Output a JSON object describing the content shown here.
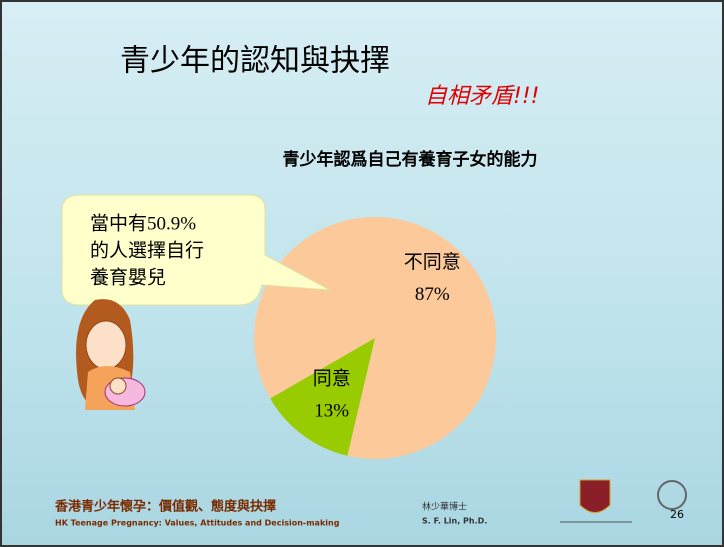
{
  "slide": {
    "title": "青少年的認知與抉擇",
    "subtitle": "自相矛盾!!!",
    "callout": [
      "當中有50.9%",
      "的人選擇自行",
      "養育嬰兒"
    ],
    "footer_cn": "香港青少年懷孕：價值觀、態度與抉擇",
    "footer_en": "HK Teenage Pregnancy: Values, Attitudes and Decision-making",
    "author_cn": "林少華博士",
    "author_en": "S. F. Lin, Ph.D.",
    "page": "26"
  },
  "chart_data": {
    "type": "pie",
    "title": "青少年認爲自己有養育子女的能力",
    "categories": [
      "不同意",
      "同意"
    ],
    "values": [
      87,
      13
    ],
    "value_labels": [
      "87%",
      "13%"
    ],
    "colors": [
      "#fcc99a",
      "#99cc00"
    ]
  }
}
